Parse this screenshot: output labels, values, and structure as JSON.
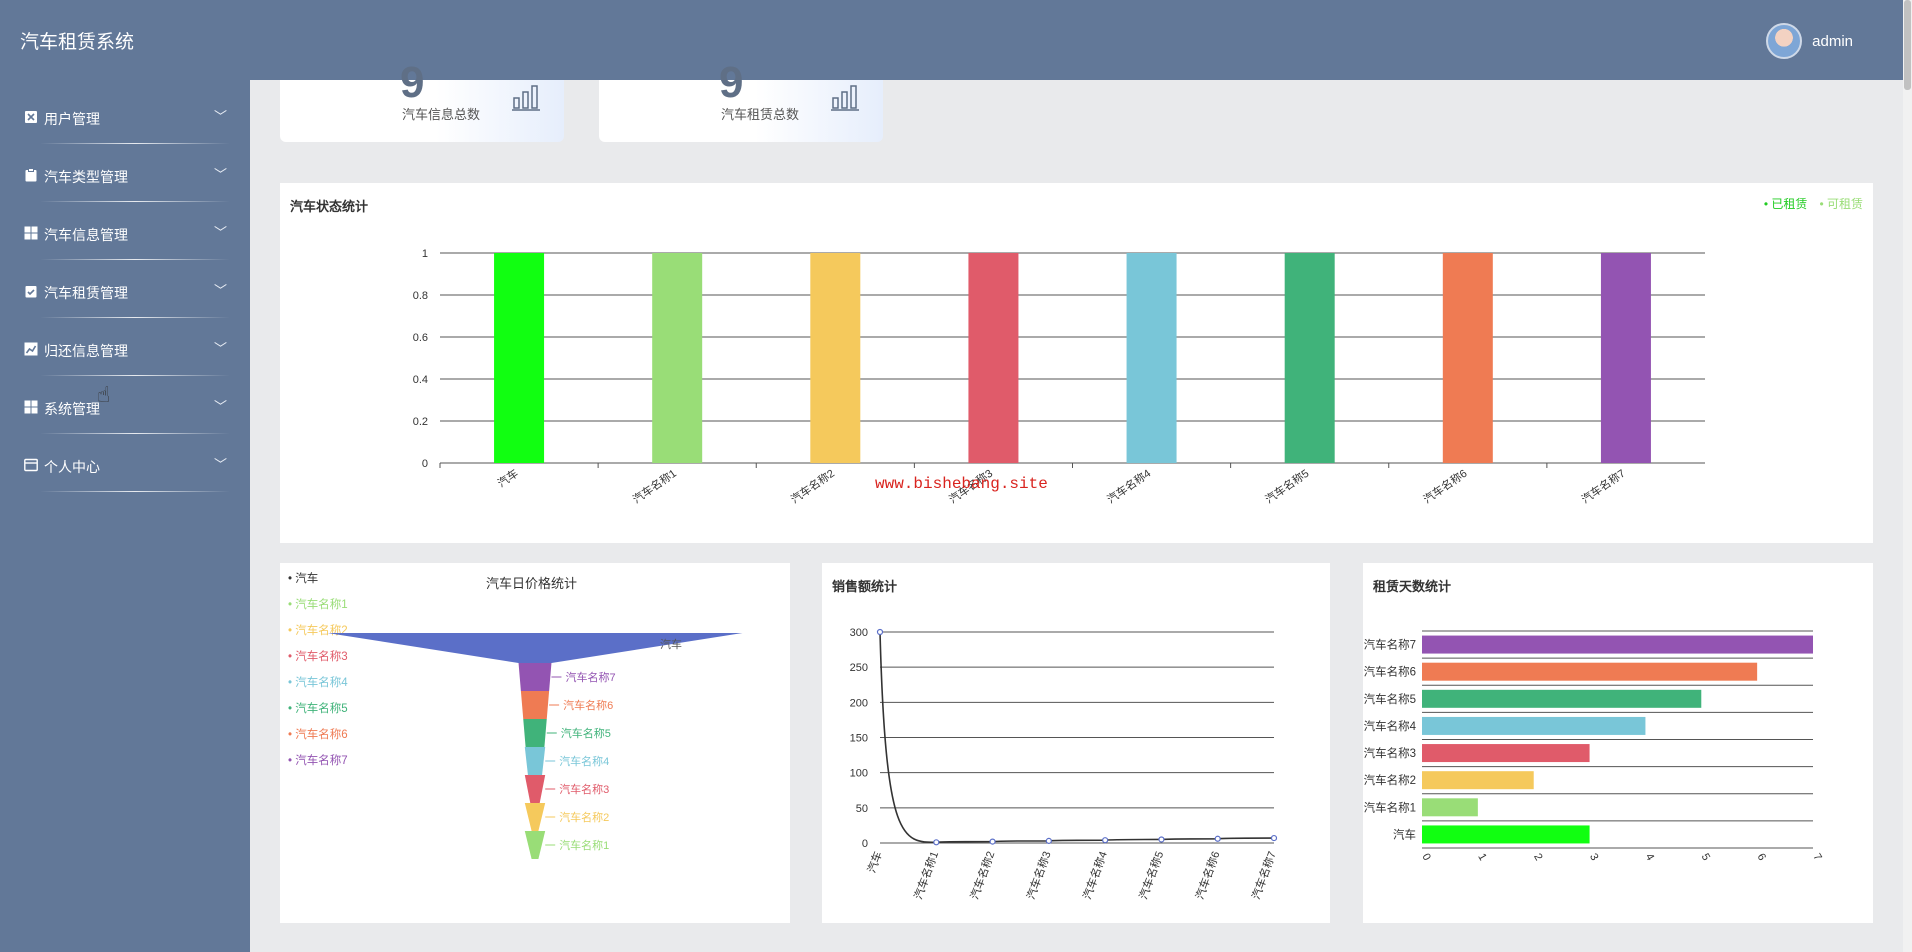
{
  "app": {
    "title": "汽车租赁系统",
    "user": "admin"
  },
  "sidebar": {
    "items": [
      {
        "label": "用户管理",
        "icon": "user-doc-icon"
      },
      {
        "label": "汽车类型管理",
        "icon": "clipboard-icon"
      },
      {
        "label": "汽车信息管理",
        "icon": "grid-icon"
      },
      {
        "label": "汽车租赁管理",
        "icon": "clipboard-check-icon"
      },
      {
        "label": "归还信息管理",
        "icon": "chart-icon"
      },
      {
        "label": "系统管理",
        "icon": "grid-icon"
      },
      {
        "label": "个人中心",
        "icon": "card-icon"
      }
    ]
  },
  "stats": [
    {
      "label": "汽车信息总数",
      "value": "9"
    },
    {
      "label": "汽车租赁总数",
      "value": "9"
    }
  ],
  "status_panel": {
    "title": "汽车状态统计",
    "legend": [
      "已租赁",
      "可租赁"
    ],
    "legend_colors": [
      "#22cc22",
      "#99dd77"
    ]
  },
  "price_panel": {
    "title": "汽车日价格统计"
  },
  "sales_panel": {
    "title": "销售额统计"
  },
  "days_panel": {
    "title": "租赁天数统计"
  },
  "watermark": "www.bishebang.site",
  "chart_data": [
    {
      "type": "bar",
      "title": "汽车状态统计",
      "categories": [
        "汽车",
        "汽车名称1",
        "汽车名称2",
        "汽车名称3",
        "汽车名称4",
        "汽车名称5",
        "汽车名称6",
        "汽车名称7"
      ],
      "values": [
        1,
        1,
        1,
        1,
        1,
        1,
        1,
        1
      ],
      "colors": [
        "#11ff11",
        "#99dd77",
        "#f5c95c",
        "#e05b6a",
        "#79c6d8",
        "#40b37a",
        "#ef7b53",
        "#9354b2"
      ],
      "ylim": [
        0,
        1
      ],
      "yticks": [
        "0",
        "0.2",
        "0.4",
        "0.6",
        "0.8",
        "1"
      ],
      "grid": true,
      "legend": "top-right"
    },
    {
      "type": "funnel",
      "title": "汽车日价格统计",
      "categories": [
        "汽车",
        "汽车名称1",
        "汽车名称2",
        "汽车名称3",
        "汽车名称4",
        "汽车名称5",
        "汽车名称6",
        "汽车名称7"
      ],
      "values": [
        300,
        1,
        2,
        3,
        4,
        5,
        6,
        7
      ],
      "colors": [
        "#5b6fc8",
        "#99dd77",
        "#f5c95c",
        "#e05b6a",
        "#79c6d8",
        "#40b37a",
        "#ef7b53",
        "#9354b2"
      ],
      "legend": "left"
    },
    {
      "type": "line",
      "title": "销售额统计",
      "x": [
        "汽车",
        "汽车名称1",
        "汽车名称2",
        "汽车名称3",
        "汽车名称4",
        "汽车名称5",
        "汽车名称6",
        "汽车名称7"
      ],
      "values": [
        300,
        1,
        2,
        3,
        4,
        5,
        6,
        7
      ],
      "ylim": [
        0,
        300
      ],
      "yticks": [
        "0",
        "50",
        "100",
        "150",
        "200",
        "250",
        "300"
      ],
      "grid": true
    },
    {
      "type": "bar",
      "orientation": "horizontal",
      "title": "租赁天数统计",
      "categories": [
        "汽车",
        "汽车名称1",
        "汽车名称2",
        "汽车名称3",
        "汽车名称4",
        "汽车名称5",
        "汽车名称6",
        "汽车名称7"
      ],
      "values": [
        3,
        1,
        2,
        3,
        4,
        5,
        6,
        7
      ],
      "colors": [
        "#11ff11",
        "#99dd77",
        "#f5c95c",
        "#e05b6a",
        "#79c6d8",
        "#40b37a",
        "#ef7b53",
        "#9354b2"
      ],
      "xlim": [
        0,
        7
      ],
      "xticks": [
        "0",
        "1",
        "2",
        "3",
        "4",
        "5",
        "6",
        "7"
      ],
      "grid": true
    }
  ]
}
